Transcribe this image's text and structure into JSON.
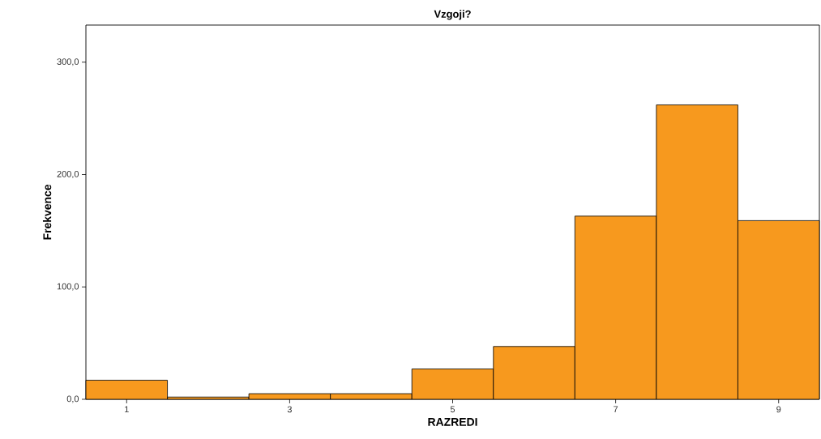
{
  "chart_data": {
    "type": "histogram",
    "title": "Vzgoji?",
    "xlabel": "RAZREDI",
    "ylabel": "Frekvence",
    "bins": [
      0.5,
      1.5,
      2.5,
      3.5,
      4.5,
      5.5,
      6.5,
      7.5,
      8.5,
      9.5
    ],
    "values": [
      17,
      2,
      5,
      5,
      27,
      47,
      163,
      262,
      159
    ],
    "color": "#f7991e",
    "xlim": [
      0.5,
      9.5
    ],
    "xticks": [
      1,
      3,
      5,
      7,
      9
    ],
    "ylim": [
      0,
      333
    ],
    "yticks": [
      {
        "value": 0,
        "label": "0,0"
      },
      {
        "value": 100,
        "label": "100,0"
      },
      {
        "value": 200,
        "label": "200,0"
      },
      {
        "value": 300,
        "label": "300,0"
      }
    ],
    "grid": false
  }
}
